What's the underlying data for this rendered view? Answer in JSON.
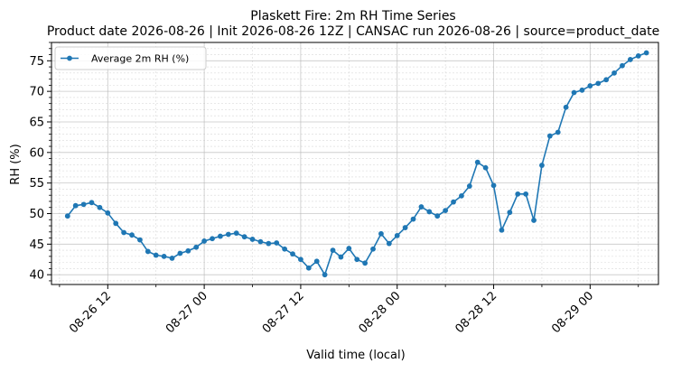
{
  "chart_data": {
    "type": "line",
    "title_line1": "Plaskett Fire: 2m RH Time Series",
    "title_line2": "Product date 2026-08-26 | Init 2026-08-26 12Z | CANSAC run 2026-08-26 | source=product_date",
    "xlabel": "Valid time (local)",
    "ylabel": "RH (%)",
    "x_ticks": [
      {
        "label": "08-26 12",
        "t": "2026-08-26T12:00"
      },
      {
        "label": "08-27 00",
        "t": "2026-08-27T00:00"
      },
      {
        "label": "08-27 12",
        "t": "2026-08-27T12:00"
      },
      {
        "label": "08-28 00",
        "t": "2026-08-28T00:00"
      },
      {
        "label": "08-28 12",
        "t": "2026-08-28T12:00"
      },
      {
        "label": "08-29 00",
        "t": "2026-08-29T00:00"
      }
    ],
    "x_range": [
      "2026-08-26T05:00",
      "2026-08-29T08:30"
    ],
    "y_ticks": [
      40,
      45,
      50,
      55,
      60,
      65,
      70,
      75
    ],
    "ylim": [
      38.4,
      78
    ],
    "grid": true,
    "legend_position": "top-left",
    "line_color": "#1f77b4",
    "series": [
      {
        "name": "Average 2m RH (%)",
        "start": "2026-08-26T07:00",
        "step_hours": 1,
        "values": [
          49.6,
          51.3,
          51.5,
          51.8,
          51.0,
          50.1,
          48.4,
          46.9,
          46.5,
          45.7,
          43.8,
          43.2,
          43.0,
          42.7,
          43.5,
          43.9,
          44.5,
          45.5,
          45.9,
          46.3,
          46.6,
          46.8,
          46.2,
          45.8,
          45.4,
          45.1,
          45.2,
          44.2,
          43.4,
          42.5,
          41.1,
          42.2,
          40.0,
          44.0,
          42.9,
          44.3,
          42.5,
          41.9,
          44.2,
          46.7,
          45.1,
          46.4,
          47.7,
          49.1,
          51.1,
          50.3,
          49.6,
          50.5,
          51.9,
          52.9,
          54.5,
          58.4,
          57.5,
          54.6,
          47.3,
          50.2,
          53.2,
          53.2,
          48.9,
          57.9,
          62.7,
          63.3,
          67.4,
          69.8,
          70.2,
          70.9,
          71.3,
          71.9,
          73.0,
          74.2,
          75.2,
          75.8,
          76.3
        ]
      }
    ]
  }
}
